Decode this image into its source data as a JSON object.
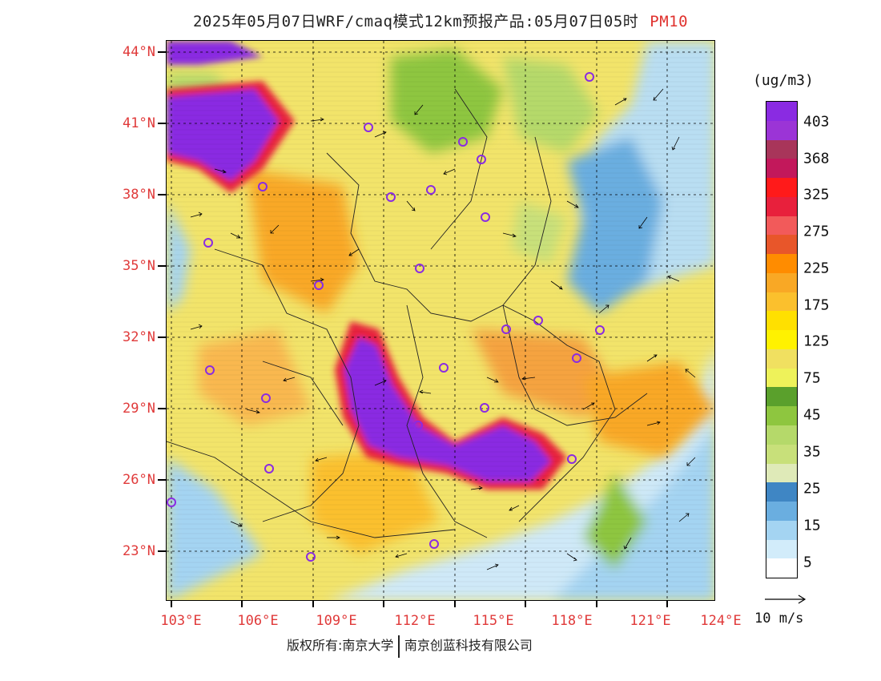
{
  "title": {
    "main": "2025年05月07日WRF/cmaq模式12km预报产品:05月07日05时",
    "pollutant": "PM10"
  },
  "axes": {
    "lat_labels": [
      "44°N",
      "41°N",
      "38°N",
      "35°N",
      "32°N",
      "29°N",
      "26°N",
      "23°N"
    ],
    "lon_labels": [
      "103°E",
      "106°E",
      "109°E",
      "112°E",
      "115°E",
      "118°E",
      "121°E",
      "124°E"
    ]
  },
  "legend": {
    "unit": "(ug/m3)",
    "labels": [
      "403",
      "368",
      "325",
      "275",
      "225",
      "175",
      "125",
      "75",
      "45",
      "35",
      "25",
      "15",
      "5"
    ],
    "colors": [
      "#8a2be2",
      "#9b34d6",
      "#a8355a",
      "#c2185b",
      "#ff1a1a",
      "#e8203c",
      "#f25a5a",
      "#e8562a",
      "#ff8c00",
      "#f9a825",
      "#fbc02d",
      "#ffe000",
      "#fff200",
      "#f0e060",
      "#eef25a",
      "#5aa02c",
      "#8ec63f",
      "#b5d96a",
      "#c8e07a",
      "#dfeab8",
      "#3f86c4",
      "#6aaee0",
      "#a4d4f2",
      "#d2ecfa",
      "#ffffff"
    ]
  },
  "wind_reference": {
    "label": "10 m/s"
  },
  "stations_color": "#8a2be2",
  "footer": {
    "left": "版权所有:南京大学",
    "right": "南京创蓝科技有限公司"
  }
}
